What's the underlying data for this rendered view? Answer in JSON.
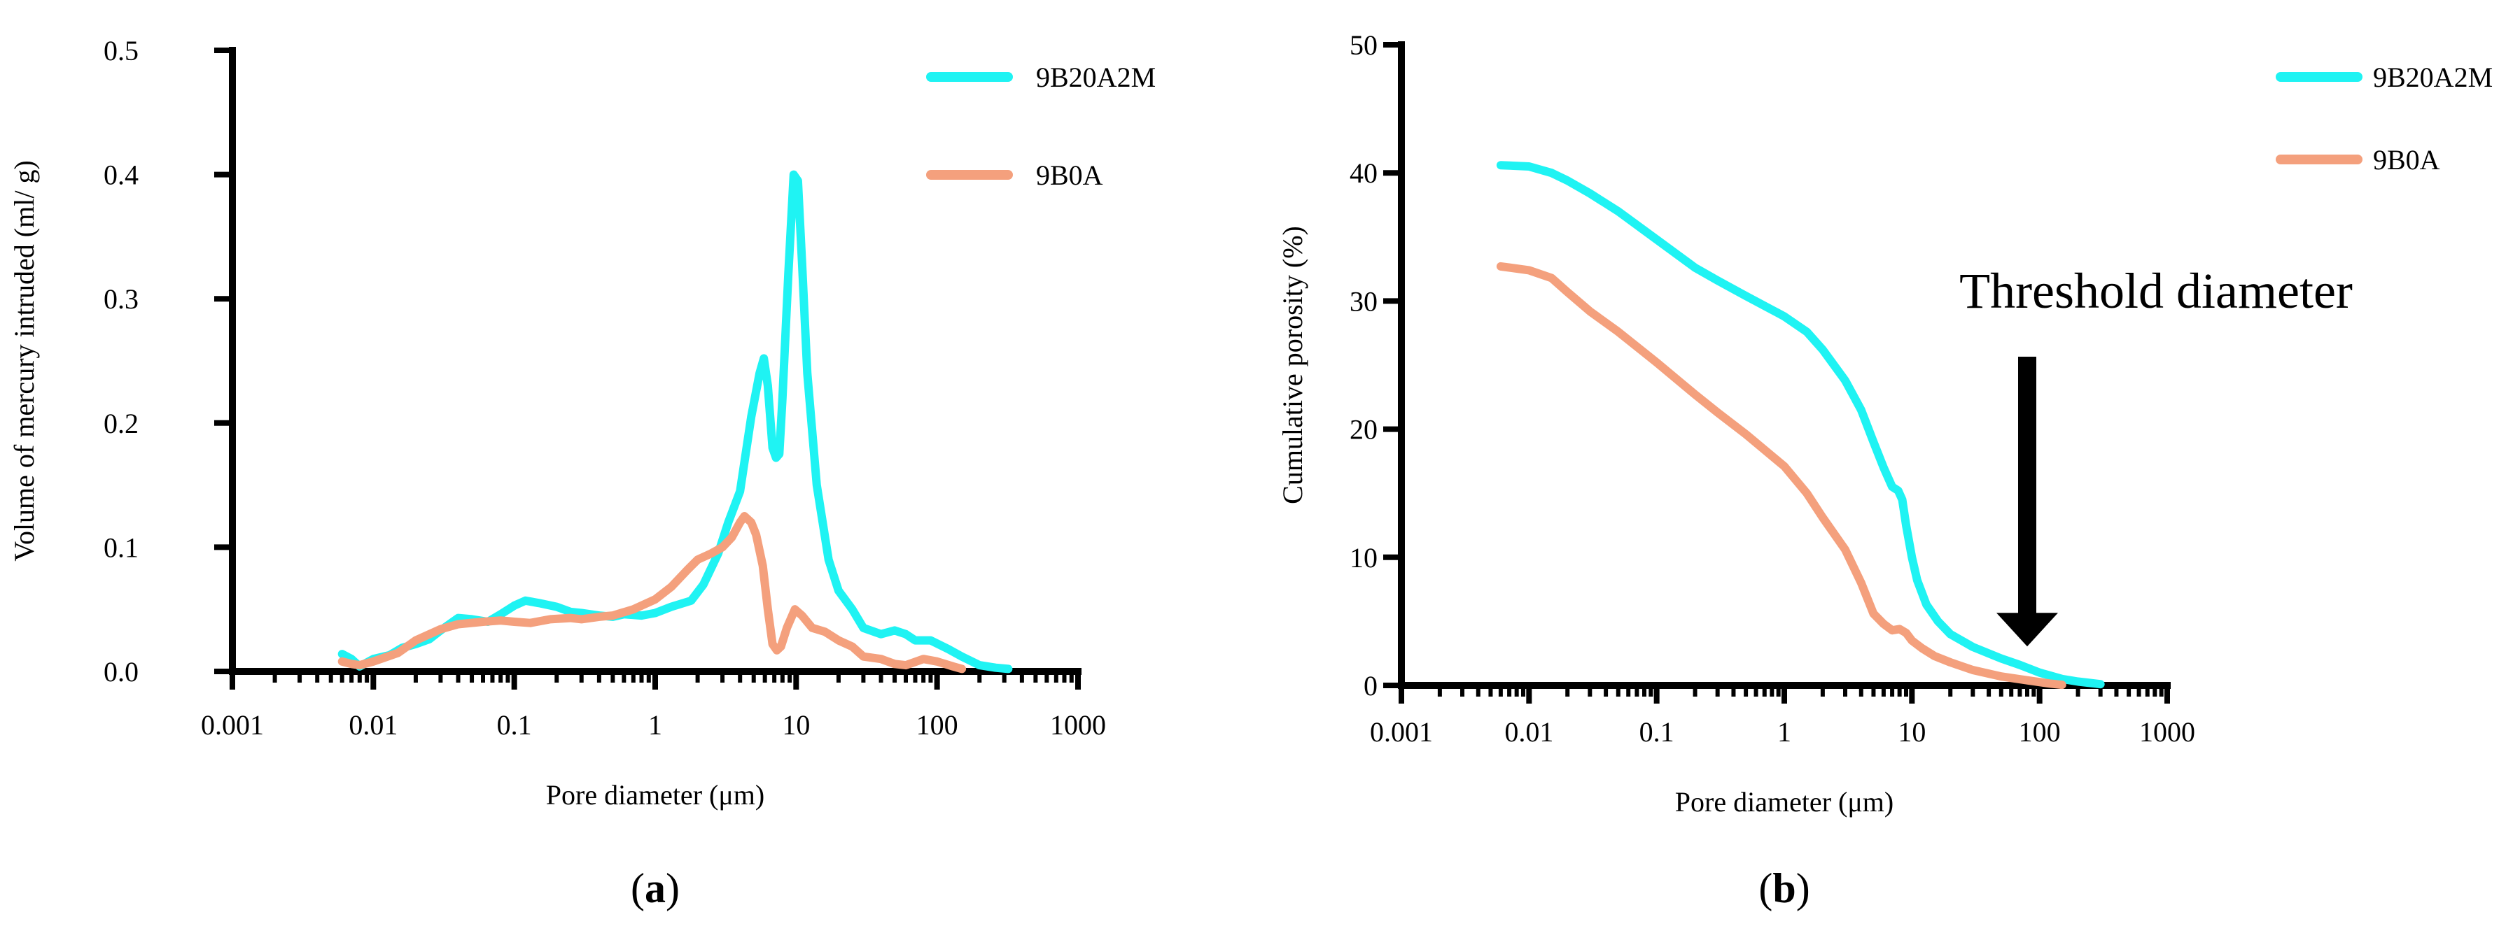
{
  "chart_data": [
    {
      "type": "line",
      "panel_label": "a",
      "xlabel": "Pore diameter (μm)",
      "ylabel": "Volume of mercury intruded (ml/ g)",
      "xscale": "log",
      "xlim": [
        0.001,
        1000
      ],
      "ylim": [
        0,
        0.5
      ],
      "x_ticks": [
        "0.001",
        "0.01",
        "0.1",
        "1",
        "10",
        "100",
        "1000"
      ],
      "y_ticks": [
        "0.0",
        "0.1",
        "0.2",
        "0.3",
        "0.4",
        "0.5"
      ],
      "legend_position": "top-right",
      "series": [
        {
          "name": "9B20A2M",
          "color": "#1FF3F3",
          "points": [
            [
              0.006,
              0.014
            ],
            [
              0.007,
              0.01
            ],
            [
              0.008,
              0.004
            ],
            [
              0.01,
              0.01
            ],
            [
              0.013,
              0.013
            ],
            [
              0.016,
              0.019
            ],
            [
              0.02,
              0.022
            ],
            [
              0.025,
              0.026
            ],
            [
              0.03,
              0.033
            ],
            [
              0.04,
              0.043
            ],
            [
              0.05,
              0.042
            ],
            [
              0.065,
              0.04
            ],
            [
              0.08,
              0.046
            ],
            [
              0.1,
              0.053
            ],
            [
              0.12,
              0.057
            ],
            [
              0.15,
              0.055
            ],
            [
              0.2,
              0.052
            ],
            [
              0.25,
              0.048
            ],
            [
              0.3,
              0.047
            ],
            [
              0.4,
              0.045
            ],
            [
              0.5,
              0.044
            ],
            [
              0.6,
              0.046
            ],
            [
              0.8,
              0.045
            ],
            [
              1.0,
              0.047
            ],
            [
              1.3,
              0.052
            ],
            [
              1.8,
              0.057
            ],
            [
              2.2,
              0.07
            ],
            [
              2.8,
              0.095
            ],
            [
              3.3,
              0.12
            ],
            [
              4.0,
              0.145
            ],
            [
              4.8,
              0.205
            ],
            [
              5.5,
              0.24
            ],
            [
              5.9,
              0.252
            ],
            [
              6.3,
              0.23
            ],
            [
              6.8,
              0.18
            ],
            [
              7.2,
              0.172
            ],
            [
              7.6,
              0.175
            ],
            [
              8.0,
              0.22
            ],
            [
              8.8,
              0.32
            ],
            [
              9.6,
              0.4
            ],
            [
              10.3,
              0.395
            ],
            [
              11.0,
              0.33
            ],
            [
              12.0,
              0.24
            ],
            [
              14.0,
              0.15
            ],
            [
              17.0,
              0.09
            ],
            [
              20.0,
              0.065
            ],
            [
              25.0,
              0.05
            ],
            [
              30.0,
              0.035
            ],
            [
              40.0,
              0.03
            ],
            [
              50.0,
              0.033
            ],
            [
              60.0,
              0.03
            ],
            [
              70.0,
              0.025
            ],
            [
              90.0,
              0.025
            ],
            [
              120.0,
              0.018
            ],
            [
              150.0,
              0.012
            ],
            [
              200.0,
              0.005
            ],
            [
              260.0,
              0.003
            ],
            [
              320.0,
              0.002
            ]
          ]
        },
        {
          "name": "9B0A",
          "color": "#F4A07D",
          "points": [
            [
              0.006,
              0.008
            ],
            [
              0.007,
              0.006
            ],
            [
              0.008,
              0.005
            ],
            [
              0.01,
              0.008
            ],
            [
              0.015,
              0.015
            ],
            [
              0.02,
              0.025
            ],
            [
              0.03,
              0.034
            ],
            [
              0.04,
              0.038
            ],
            [
              0.06,
              0.04
            ],
            [
              0.08,
              0.041
            ],
            [
              0.1,
              0.04
            ],
            [
              0.13,
              0.039
            ],
            [
              0.18,
              0.042
            ],
            [
              0.25,
              0.043
            ],
            [
              0.3,
              0.042
            ],
            [
              0.4,
              0.044
            ],
            [
              0.5,
              0.045
            ],
            [
              0.7,
              0.05
            ],
            [
              1.0,
              0.058
            ],
            [
              1.3,
              0.068
            ],
            [
              1.7,
              0.082
            ],
            [
              2.0,
              0.09
            ],
            [
              2.5,
              0.095
            ],
            [
              3.0,
              0.1
            ],
            [
              3.5,
              0.108
            ],
            [
              4.0,
              0.12
            ],
            [
              4.3,
              0.125
            ],
            [
              4.8,
              0.12
            ],
            [
              5.2,
              0.11
            ],
            [
              5.8,
              0.085
            ],
            [
              6.3,
              0.05
            ],
            [
              6.8,
              0.022
            ],
            [
              7.3,
              0.017
            ],
            [
              7.8,
              0.02
            ],
            [
              8.6,
              0.035
            ],
            [
              9.8,
              0.05
            ],
            [
              11.0,
              0.045
            ],
            [
              13.0,
              0.035
            ],
            [
              16.0,
              0.032
            ],
            [
              20.0,
              0.025
            ],
            [
              25.0,
              0.02
            ],
            [
              30.0,
              0.012
            ],
            [
              40.0,
              0.01
            ],
            [
              50.0,
              0.006
            ],
            [
              60.0,
              0.005
            ],
            [
              80.0,
              0.01
            ],
            [
              100.0,
              0.008
            ],
            [
              130.0,
              0.004
            ],
            [
              150.0,
              0.002
            ]
          ]
        }
      ]
    },
    {
      "type": "line",
      "panel_label": "b",
      "xlabel": "Pore diameter (μm)",
      "ylabel": "Cumulative porosity (%)",
      "xscale": "log",
      "xlim": [
        0.001,
        1000
      ],
      "ylim": [
        0,
        50
      ],
      "x_ticks": [
        "0.001",
        "0.01",
        "0.1",
        "1",
        "10",
        "100",
        "1000"
      ],
      "y_ticks": [
        "0",
        "10",
        "20",
        "30",
        "40",
        "50"
      ],
      "legend_position": "top-right",
      "annotation": {
        "text": "Threshold diameter",
        "x": 80,
        "y": 2.5
      },
      "series": [
        {
          "name": "9B20A2M",
          "color": "#1FF3F3",
          "points": [
            [
              0.006,
              40.6
            ],
            [
              0.01,
              40.5
            ],
            [
              0.015,
              40.0
            ],
            [
              0.02,
              39.4
            ],
            [
              0.03,
              38.4
            ],
            [
              0.05,
              37.0
            ],
            [
              0.1,
              34.8
            ],
            [
              0.2,
              32.6
            ],
            [
              0.3,
              31.6
            ],
            [
              0.5,
              30.4
            ],
            [
              1.0,
              28.8
            ],
            [
              1.5,
              27.6
            ],
            [
              2.0,
              26.2
            ],
            [
              3.0,
              23.8
            ],
            [
              4.0,
              21.5
            ],
            [
              5.0,
              19.0
            ],
            [
              6.0,
              17.0
            ],
            [
              7.0,
              15.5
            ],
            [
              7.8,
              15.2
            ],
            [
              8.4,
              14.5
            ],
            [
              9.0,
              12.5
            ],
            [
              10.0,
              10.0
            ],
            [
              11.0,
              8.2
            ],
            [
              13.0,
              6.3
            ],
            [
              16.0,
              5.0
            ],
            [
              20.0,
              4.0
            ],
            [
              30.0,
              3.0
            ],
            [
              50.0,
              2.1
            ],
            [
              70.0,
              1.6
            ],
            [
              100.0,
              1.0
            ],
            [
              150.0,
              0.5
            ],
            [
              200.0,
              0.3
            ],
            [
              300.0,
              0.1
            ]
          ]
        },
        {
          "name": "9B0A",
          "color": "#F4A07D",
          "points": [
            [
              0.006,
              32.7
            ],
            [
              0.01,
              32.4
            ],
            [
              0.015,
              31.8
            ],
            [
              0.02,
              30.7
            ],
            [
              0.03,
              29.2
            ],
            [
              0.05,
              27.6
            ],
            [
              0.1,
              25.2
            ],
            [
              0.2,
              22.7
            ],
            [
              0.3,
              21.3
            ],
            [
              0.5,
              19.6
            ],
            [
              1.0,
              17.1
            ],
            [
              1.5,
              15.0
            ],
            [
              2.0,
              13.1
            ],
            [
              3.0,
              10.6
            ],
            [
              4.0,
              8.0
            ],
            [
              5.0,
              5.6
            ],
            [
              6.0,
              4.8
            ],
            [
              7.0,
              4.3
            ],
            [
              8.0,
              4.4
            ],
            [
              9.0,
              4.1
            ],
            [
              10.0,
              3.5
            ],
            [
              12.0,
              2.9
            ],
            [
              15.0,
              2.3
            ],
            [
              20.0,
              1.8
            ],
            [
              30.0,
              1.2
            ],
            [
              50.0,
              0.7
            ],
            [
              80.0,
              0.4
            ],
            [
              120.0,
              0.15
            ],
            [
              150.0,
              0.05
            ]
          ]
        }
      ]
    }
  ]
}
